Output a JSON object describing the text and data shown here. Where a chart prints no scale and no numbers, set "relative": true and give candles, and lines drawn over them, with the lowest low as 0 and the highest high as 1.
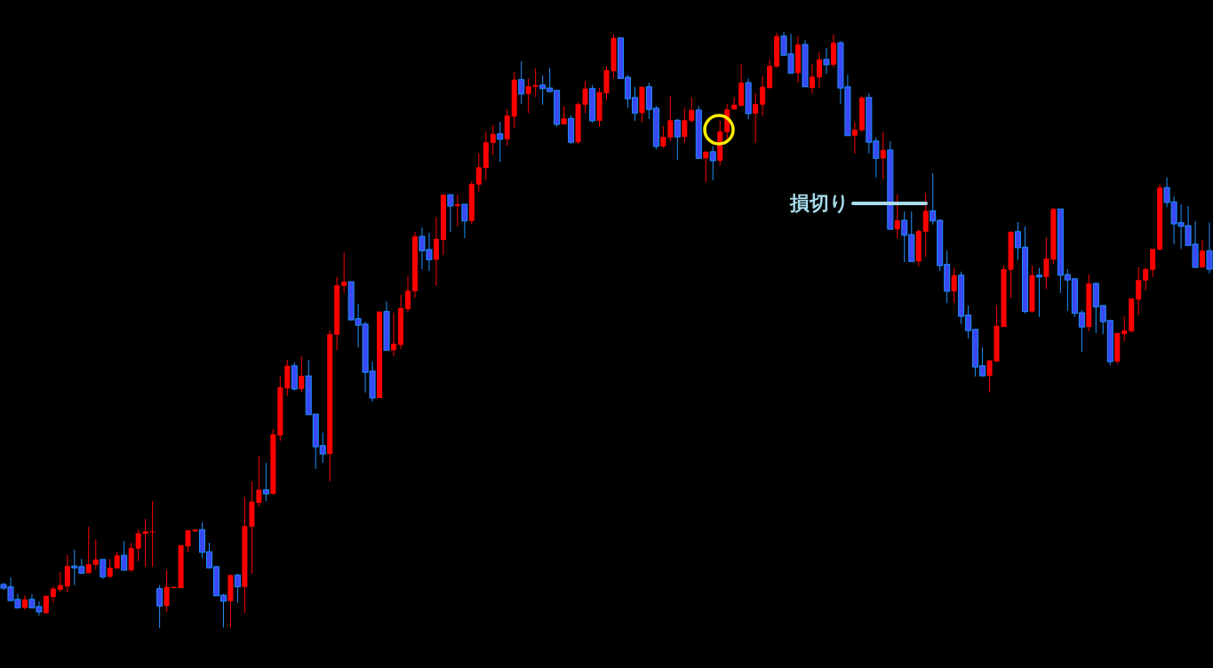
{
  "chart_data": {
    "type": "candlestick",
    "relative": true,
    "categories": [
      null,
      null,
      null,
      null,
      null,
      null,
      null,
      null,
      null,
      null,
      null,
      null,
      null,
      null,
      null,
      null,
      null,
      null,
      null,
      null,
      null,
      null,
      null,
      null,
      null,
      null,
      null,
      null,
      null,
      null,
      null,
      null,
      null,
      null,
      null,
      null,
      null,
      null,
      null,
      null,
      null,
      null,
      null,
      null,
      null,
      null,
      null,
      null,
      null,
      null,
      null,
      null,
      null,
      null,
      null,
      null,
      null,
      null,
      null,
      null,
      null,
      null,
      null,
      null,
      null,
      null,
      null,
      null,
      null,
      null,
      null,
      null,
      null,
      null,
      null,
      null,
      null,
      null,
      null,
      null,
      null,
      null,
      null,
      null,
      null,
      null,
      null,
      null,
      null,
      null,
      null,
      null,
      null,
      null,
      null,
      null,
      null,
      null,
      null,
      null,
      null,
      null,
      null,
      null,
      null,
      null,
      null,
      null,
      null,
      null,
      null,
      null,
      null,
      null,
      null,
      null,
      null,
      null,
      null,
      null,
      null,
      null,
      null,
      null,
      null,
      null,
      null,
      null,
      null,
      null,
      null,
      null,
      null,
      null,
      null,
      null,
      null,
      null,
      null,
      null,
      null,
      null,
      null,
      null,
      null,
      null,
      null,
      null,
      null,
      null,
      null,
      null,
      null,
      null,
      null,
      null,
      null,
      null,
      null,
      null,
      null,
      null,
      null,
      null,
      null,
      null,
      null,
      null,
      null,
      null,
      null
    ],
    "ohlc": [
      [
        0.073,
        0.076,
        0.064,
        0.067
      ],
      [
        0.069,
        0.085,
        0.046,
        0.046
      ],
      [
        0.048,
        0.057,
        0.033,
        0.034
      ],
      [
        0.034,
        0.055,
        0.031,
        0.048
      ],
      [
        0.048,
        0.057,
        0.033,
        0.034
      ],
      [
        0.036,
        0.045,
        0.021,
        0.027
      ],
      [
        0.025,
        0.054,
        0.024,
        0.054
      ],
      [
        0.052,
        0.07,
        0.042,
        0.066
      ],
      [
        0.064,
        0.094,
        0.06,
        0.072
      ],
      [
        0.07,
        0.122,
        0.06,
        0.104
      ],
      [
        0.104,
        0.131,
        0.072,
        0.101
      ],
      [
        0.103,
        0.116,
        0.092,
        0.092
      ],
      [
        0.092,
        0.17,
        0.092,
        0.107
      ],
      [
        0.106,
        0.149,
        0.098,
        0.115
      ],
      [
        0.115,
        0.115,
        0.082,
        0.086
      ],
      [
        0.086,
        0.116,
        0.083,
        0.101
      ],
      [
        0.1,
        0.128,
        0.1,
        0.122
      ],
      [
        0.122,
        0.146,
        0.097,
        0.097
      ],
      [
        0.097,
        0.143,
        0.094,
        0.134
      ],
      [
        0.133,
        0.165,
        0.112,
        0.159
      ],
      [
        0.158,
        0.183,
        0.103,
        0.162
      ],
      [
        0.161,
        0.213,
        0.103,
        0.162
      ],
      [
        0.066,
        0.072,
        0,
        0.037
      ],
      [
        0.037,
        0.097,
        0.027,
        0.069
      ],
      [
        0.067,
        0.069,
        0.066,
        0.069
      ],
      [
        0.067,
        0.139,
        0.067,
        0.139
      ],
      [
        0.137,
        0.164,
        0.127,
        0.164
      ],
      [
        0.162,
        0.165,
        0.162,
        0.165
      ],
      [
        0.165,
        0.177,
        0.118,
        0.127
      ],
      [
        0.128,
        0.143,
        0.101,
        0.101
      ],
      [
        0.103,
        0.104,
        0.054,
        0.054
      ],
      [
        0.055,
        0.057,
        0.001,
        0.045
      ],
      [
        0.045,
        0.089,
        0.001,
        0.089
      ],
      [
        0.089,
        0.091,
        0.043,
        0.069
      ],
      [
        0.069,
        0.219,
        0.025,
        0.171
      ],
      [
        0.17,
        0.246,
        0.091,
        0.212
      ],
      [
        0.21,
        0.289,
        0.204,
        0.232
      ],
      [
        0.232,
        0.277,
        0.213,
        0.225
      ],
      [
        0.225,
        0.334,
        0.224,
        0.325
      ],
      [
        0.323,
        0.422,
        0.314,
        0.404
      ],
      [
        0.402,
        0.45,
        0.39,
        0.44
      ],
      [
        0.44,
        0.446,
        0.398,
        0.401
      ],
      [
        0.401,
        0.456,
        0.396,
        0.423
      ],
      [
        0.423,
        0.45,
        0.358,
        0.358
      ],
      [
        0.359,
        0.359,
        0.267,
        0.304
      ],
      [
        0.306,
        0.328,
        0.277,
        0.292
      ],
      [
        0.292,
        0.499,
        0.246,
        0.493
      ],
      [
        0.492,
        0.589,
        0.466,
        0.575
      ],
      [
        0.574,
        0.63,
        0.562,
        0.581
      ],
      [
        0.581,
        0.581,
        0.516,
        0.517
      ],
      [
        0.519,
        0.544,
        0.471,
        0.508
      ],
      [
        0.51,
        0.514,
        0.395,
        0.429
      ],
      [
        0.431,
        0.447,
        0.38,
        0.386
      ],
      [
        0.386,
        0.531,
        0.386,
        0.531
      ],
      [
        0.531,
        0.548,
        0.466,
        0.466
      ],
      [
        0.466,
        0.529,
        0.456,
        0.477
      ],
      [
        0.475,
        0.559,
        0.468,
        0.537
      ],
      [
        0.535,
        0.59,
        0.529,
        0.566
      ],
      [
        0.565,
        0.665,
        0.554,
        0.657
      ],
      [
        0.657,
        0.672,
        0.602,
        0.633
      ],
      [
        0.635,
        0.663,
        0.599,
        0.618
      ],
      [
        0.618,
        0.69,
        0.574,
        0.653
      ],
      [
        0.651,
        0.727,
        0.626,
        0.727
      ],
      [
        0.727,
        0.727,
        0.665,
        0.708
      ],
      [
        0.708,
        0.727,
        0.674,
        0.711
      ],
      [
        0.711,
        0.711,
        0.654,
        0.683
      ],
      [
        0.683,
        0.75,
        0.678,
        0.745
      ],
      [
        0.744,
        0.797,
        0.732,
        0.773
      ],
      [
        0.772,
        0.833,
        0.751,
        0.815
      ],
      [
        0.814,
        0.844,
        0.794,
        0.829
      ],
      [
        0.829,
        0.849,
        0.782,
        0.82
      ],
      [
        0.82,
        0.87,
        0.809,
        0.86
      ],
      [
        0.858,
        0.933,
        0.839,
        0.92
      ],
      [
        0.92,
        0.951,
        0.879,
        0.896
      ],
      [
        0.896,
        0.922,
        0.864,
        0.909
      ],
      [
        0.908,
        0.939,
        0.891,
        0.911
      ],
      [
        0.911,
        0.927,
        0.878,
        0.905
      ],
      [
        0.906,
        0.94,
        0.899,
        0.9
      ],
      [
        0.902,
        0.902,
        0.841,
        0.845
      ],
      [
        0.845,
        0.876,
        0.845,
        0.855
      ],
      [
        0.855,
        0.86,
        0.812,
        0.815
      ],
      [
        0.815,
        0.882,
        0.812,
        0.879
      ],
      [
        0.878,
        0.918,
        0.864,
        0.905
      ],
      [
        0.905,
        0.911,
        0.848,
        0.851
      ],
      [
        0.851,
        0.906,
        0.841,
        0.899
      ],
      [
        0.897,
        0.942,
        0.885,
        0.936
      ],
      [
        0.934,
        0.996,
        0.922,
        0.99
      ],
      [
        0.99,
        0.99,
        0.922,
        0.922
      ],
      [
        0.924,
        0.928,
        0.873,
        0.888
      ],
      [
        0.89,
        0.908,
        0.851,
        0.864
      ],
      [
        0.864,
        0.908,
        0.849,
        0.908
      ],
      [
        0.908,
        0.915,
        0.854,
        0.87
      ],
      [
        0.872,
        0.876,
        0.803,
        0.808
      ],
      [
        0.808,
        0.842,
        0.806,
        0.824
      ],
      [
        0.823,
        0.893,
        0.817,
        0.852
      ],
      [
        0.852,
        0.854,
        0.785,
        0.824
      ],
      [
        0.824,
        0.873,
        0.814,
        0.852
      ],
      [
        0.851,
        0.89,
        0.848,
        0.869
      ],
      [
        0.869,
        0.876,
        0.788,
        0.788
      ],
      [
        0.788,
        0.8,
        0.748,
        0.799
      ],
      [
        0.799,
        0.808,
        0.751,
        0.784
      ],
      [
        0.784,
        0.851,
        0.776,
        0.833
      ],
      [
        0.832,
        0.879,
        0.82,
        0.87
      ],
      [
        0.87,
        0.89,
        0.87,
        0.878
      ],
      [
        0.876,
        0.946,
        0.875,
        0.915
      ],
      [
        0.915,
        0.922,
        0.854,
        0.863
      ],
      [
        0.863,
        0.897,
        0.814,
        0.879
      ],
      [
        0.878,
        0.927,
        0.858,
        0.908
      ],
      [
        0.906,
        0.954,
        0.905,
        0.943
      ],
      [
        0.942,
        0.999,
        0.94,
        0.993
      ],
      [
        0.993,
        1,
        0.96,
        0.961
      ],
      [
        0.963,
        0.997,
        0.931,
        0.931
      ],
      [
        0.931,
        0.993,
        0.915,
        0.979
      ],
      [
        0.979,
        0.987,
        0.908,
        0.908
      ],
      [
        0.906,
        0.946,
        0.897,
        0.925
      ],
      [
        0.924,
        0.967,
        0.906,
        0.954
      ],
      [
        0.954,
        0.973,
        0.93,
        0.945
      ],
      [
        0.945,
        0.996,
        0.94,
        0.982
      ],
      [
        0.982,
        0.985,
        0.879,
        0.906
      ],
      [
        0.908,
        0.928,
        0.826,
        0.826
      ],
      [
        0.826,
        0.849,
        0.796,
        0.836
      ],
      [
        0.835,
        0.893,
        0.832,
        0.89
      ],
      [
        0.89,
        0.897,
        0.796,
        0.815
      ],
      [
        0.817,
        0.823,
        0.756,
        0.788
      ],
      [
        0.788,
        0.832,
        0.753,
        0.802
      ],
      [
        0.802,
        0.817,
        0.669,
        0.669
      ],
      [
        0.669,
        0.727,
        0.654,
        0.684
      ],
      [
        0.684,
        0.699,
        0.614,
        0.659
      ],
      [
        0.66,
        0.699,
        0.615,
        0.615
      ],
      [
        0.615,
        0.669,
        0.607,
        0.666
      ],
      [
        0.665,
        0.73,
        0.623,
        0.7
      ],
      [
        0.7,
        0.763,
        0.677,
        0.683
      ],
      [
        0.684,
        0.686,
        0.599,
        0.608
      ],
      [
        0.61,
        0.633,
        0.545,
        0.565
      ],
      [
        0.565,
        0.604,
        0.545,
        0.592
      ],
      [
        0.592,
        0.598,
        0.51,
        0.523
      ],
      [
        0.525,
        0.541,
        0.486,
        0.499
      ],
      [
        0.501,
        0.501,
        0.422,
        0.438
      ],
      [
        0.44,
        0.471,
        0.423,
        0.423
      ],
      [
        0.423,
        0.449,
        0.395,
        0.449
      ],
      [
        0.447,
        0.541,
        0.447,
        0.507
      ],
      [
        0.505,
        0.608,
        0.505,
        0.602
      ],
      [
        0.601,
        0.665,
        0.554,
        0.665
      ],
      [
        0.665,
        0.681,
        0.618,
        0.638
      ],
      [
        0.639,
        0.674,
        0.528,
        0.531
      ],
      [
        0.531,
        0.608,
        0.529,
        0.592
      ],
      [
        0.592,
        0.604,
        0.522,
        0.589
      ],
      [
        0.589,
        0.656,
        0.569,
        0.62
      ],
      [
        0.618,
        0.705,
        0.61,
        0.703
      ],
      [
        0.703,
        0.703,
        0.562,
        0.592
      ],
      [
        0.593,
        0.602,
        0.532,
        0.584
      ],
      [
        0.586,
        0.586,
        0.522,
        0.528
      ],
      [
        0.529,
        0.534,
        0.463,
        0.505
      ],
      [
        0.505,
        0.593,
        0.498,
        0.578
      ],
      [
        0.578,
        0.58,
        0.495,
        0.539
      ],
      [
        0.541,
        0.542,
        0.493,
        0.514
      ],
      [
        0.516,
        0.516,
        0.441,
        0.447
      ],
      [
        0.447,
        0.495,
        0.443,
        0.495
      ],
      [
        0.493,
        0.523,
        0.481,
        0.499
      ],
      [
        0.498,
        0.553,
        0.496,
        0.553
      ],
      [
        0.551,
        0.605,
        0.525,
        0.584
      ],
      [
        0.583,
        0.605,
        0.566,
        0.602
      ],
      [
        0.601,
        0.636,
        0.589,
        0.636
      ],
      [
        0.635,
        0.744,
        0.633,
        0.739
      ],
      [
        0.739,
        0.756,
        0.706,
        0.714
      ],
      [
        0.715,
        0.724,
        0.644,
        0.678
      ],
      [
        0.68,
        0.711,
        0.636,
        0.674
      ],
      [
        0.675,
        0.708,
        0.641,
        0.642
      ],
      [
        0.644,
        0.683,
        0.605,
        0.605
      ],
      [
        0.605,
        0.651,
        0.605,
        0.633
      ],
      [
        0.633,
        0.68,
        0.595,
        0.602
      ]
    ],
    "annotations": [
      "損切り"
    ]
  }
}
